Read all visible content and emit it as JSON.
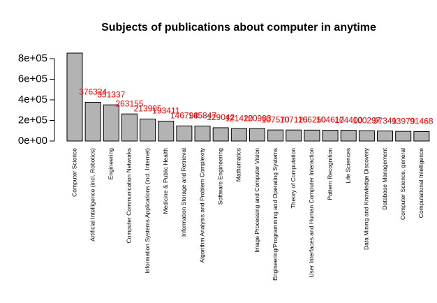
{
  "chart_data": {
    "type": "bar",
    "title": "Subjects of publications about computer in anytime",
    "categories": [
      "Computer Science",
      "Artificial Intelligence (incl. Robotics)",
      "Engineering",
      "Computer Communication Networks",
      "Information Systems Applications (incl. Internet)",
      "Medicine & Public Health",
      "Information Storage and Retrieval",
      "Algorithm Analysis and Problem Complexity",
      "Software Engineering",
      "Mathematics",
      "Image Processing and Computer Vision",
      "Engineering/Programming and Operating Systems",
      "Theory of Computation",
      "User Interfaces and Human Computer Interaction",
      "Pattern Recognition",
      "Life Sciences",
      "Data Mining and Knowledge Discovery",
      "Database Management",
      "Computer Science, general",
      "Computational Intelligence"
    ],
    "values": [
      854000,
      376324,
      351337,
      263155,
      213905,
      193411,
      146798,
      145847,
      129042,
      121420,
      120903,
      107570,
      107125,
      106250,
      104617,
      104400,
      100297,
      97341,
      93979,
      91468
    ],
    "value_labels": [
      null,
      "376324",
      "351337",
      "263155",
      "213905",
      "193411",
      "146798",
      "145847",
      "129042",
      "121420",
      "120903",
      "107570",
      "107125",
      "106250",
      "104617",
      "104400",
      "100297",
      "97341",
      "93979",
      "91468"
    ],
    "color": "#b3b3b3",
    "label_color": "#ff0000",
    "ylim": [
      0,
      800000
    ],
    "yticks": [
      {
        "value": 0,
        "label": "0e+00"
      },
      {
        "value": 200000,
        "label": "2e+05"
      },
      {
        "value": 400000,
        "label": "4e+05"
      },
      {
        "value": 600000,
        "label": "6e+05"
      },
      {
        "value": 800000,
        "label": "8e+05"
      }
    ]
  }
}
